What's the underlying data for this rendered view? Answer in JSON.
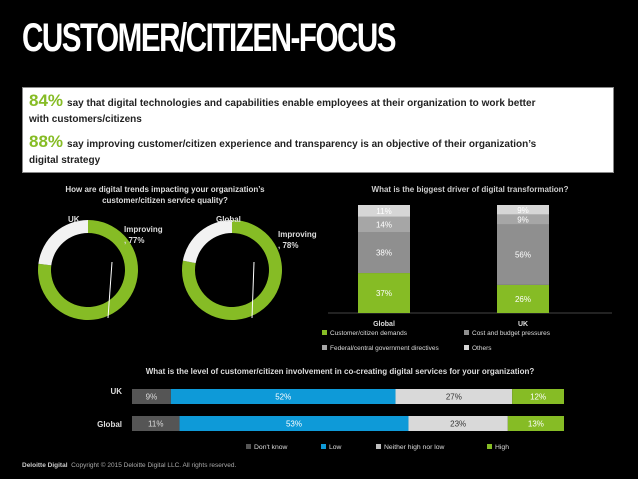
{
  "page": {
    "title": "CUSTOMER/CITIZEN-FOCUS",
    "stats": [
      {
        "pct": "84%",
        "text": "say that digital technologies and capabilities enable employees at their organization to work better",
        "text2": "with customers/citizens"
      },
      {
        "pct": "88%",
        "text": "say improving customer/citizen experience and transparency is an objective of their organization’s",
        "text2": "digital strategy"
      }
    ],
    "footer": {
      "brand": "Deloitte Digital",
      "copyright": "Copyright © 2015 Deloitte Digital LLC. All rights reserved."
    }
  },
  "colors": {
    "green": "#86bc25",
    "white": "#f2f2f2",
    "grey": "#999999",
    "darkgrey": "#666666",
    "blue": "#0e9ad8",
    "lightgrey": "#d9d9d9",
    "charcoal": "#555555"
  },
  "chart_data": [
    {
      "type": "pie",
      "question": "How are digital trends impacting your organization’s customer/citizen service quality?",
      "charts": [
        {
          "label": "UK",
          "annotation_line1": "Improving",
          "annotation_line2": ", 77%",
          "value": 77
        },
        {
          "label": "Global",
          "annotation_line1": "Improving",
          "annotation_line2": ", 78%",
          "value": 78
        }
      ]
    },
    {
      "type": "bar",
      "title": "What is the biggest driver of digital transformation?",
      "categories": [
        "Global",
        "UK"
      ],
      "series": [
        {
          "name": "Customer/citizen demands",
          "values": [
            37,
            26
          ],
          "labels": [
            "37%",
            "26%"
          ]
        },
        {
          "name": "Cost and budget pressures",
          "values": [
            38,
            56
          ],
          "labels": [
            "38%",
            "56%"
          ]
        },
        {
          "name": "Federal/central government directives",
          "values": [
            14,
            9
          ],
          "labels": [
            "14%",
            "9%"
          ]
        },
        {
          "name": "Others",
          "values": [
            11,
            9
          ],
          "labels": [
            "11%",
            "9%"
          ]
        }
      ]
    },
    {
      "type": "bar",
      "title": "What is the level of customer/citizen involvement in co-creating digital services for your organization?",
      "categories": [
        "UK",
        "Global"
      ],
      "series": [
        {
          "name": "Don't know",
          "values": [
            9,
            11
          ],
          "labels": [
            "9%",
            "11%"
          ]
        },
        {
          "name": "Low",
          "values": [
            52,
            53
          ],
          "labels": [
            "52%",
            "53%"
          ]
        },
        {
          "name": "Neither high nor low",
          "values": [
            27,
            23
          ],
          "labels": [
            "27%",
            "23%"
          ]
        },
        {
          "name": "High",
          "values": [
            12,
            13
          ],
          "labels": [
            "12%",
            "13%"
          ]
        }
      ]
    }
  ]
}
